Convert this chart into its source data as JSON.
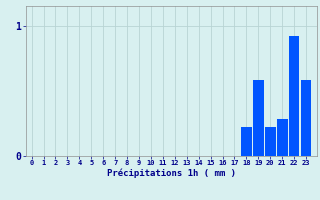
{
  "hours": [
    0,
    1,
    2,
    3,
    4,
    5,
    6,
    7,
    8,
    9,
    10,
    11,
    12,
    13,
    14,
    15,
    16,
    17,
    18,
    19,
    20,
    21,
    22,
    23
  ],
  "values": [
    0,
    0,
    0,
    0,
    0,
    0,
    0,
    0,
    0,
    0,
    0,
    0,
    0,
    0,
    0,
    0,
    0,
    0,
    0.22,
    0.58,
    0.22,
    0.28,
    0.92,
    0.58
  ],
  "bar_color": "#0055ff",
  "background_color": "#d8f0f0",
  "grid_color": "#b8d4d4",
  "xlabel": "Précipitations 1h ( mm )",
  "xlabel_color": "#00008b",
  "tick_color": "#00008b",
  "ytick_labels": [
    "0",
    "1"
  ],
  "ytick_values": [
    0,
    1
  ],
  "ylim": [
    0,
    1.15
  ],
  "xlim": [
    -0.5,
    23.9
  ]
}
